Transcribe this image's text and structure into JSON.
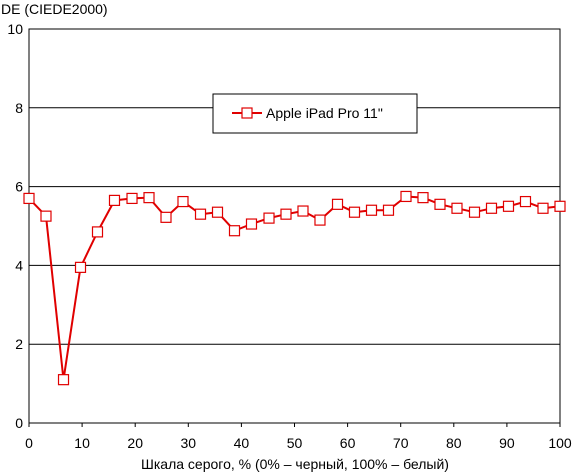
{
  "chart_data": {
    "type": "line",
    "title": "",
    "ylabel": "DE (CIEDE2000)",
    "xlabel": "Шкала серого, % (0% – черный, 100% – белый)",
    "xlim": [
      0,
      100
    ],
    "ylim": [
      0,
      10
    ],
    "x_ticks": [
      "0",
      "10",
      "20",
      "30",
      "40",
      "50",
      "60",
      "70",
      "80",
      "90",
      "100"
    ],
    "y_ticks": [
      "0",
      "2",
      "4",
      "6",
      "8",
      "10"
    ],
    "grid": "horizontal",
    "legend_position": "top-center",
    "series": [
      {
        "name": "Apple iPad Pro 11\"",
        "color": "#e00000",
        "marker": "square-open",
        "points": [
          [
            0,
            5.7
          ],
          [
            3.2,
            5.25
          ],
          [
            6.5,
            1.1
          ],
          [
            9.7,
            3.95
          ],
          [
            12.9,
            4.85
          ],
          [
            16.1,
            5.65
          ],
          [
            19.4,
            5.7
          ],
          [
            22.6,
            5.72
          ],
          [
            25.8,
            5.22
          ],
          [
            29.0,
            5.62
          ],
          [
            32.3,
            5.3
          ],
          [
            35.5,
            5.35
          ],
          [
            38.7,
            4.88
          ],
          [
            41.9,
            5.05
          ],
          [
            45.2,
            5.2
          ],
          [
            48.4,
            5.3
          ],
          [
            51.6,
            5.38
          ],
          [
            54.8,
            5.15
          ],
          [
            58.1,
            5.55
          ],
          [
            61.3,
            5.35
          ],
          [
            64.5,
            5.4
          ],
          [
            67.7,
            5.4
          ],
          [
            71.0,
            5.75
          ],
          [
            74.2,
            5.72
          ],
          [
            77.4,
            5.55
          ],
          [
            80.6,
            5.45
          ],
          [
            83.9,
            5.35
          ],
          [
            87.1,
            5.45
          ],
          [
            90.3,
            5.5
          ],
          [
            93.5,
            5.62
          ],
          [
            96.8,
            5.45
          ],
          [
            100,
            5.5
          ]
        ]
      }
    ]
  }
}
